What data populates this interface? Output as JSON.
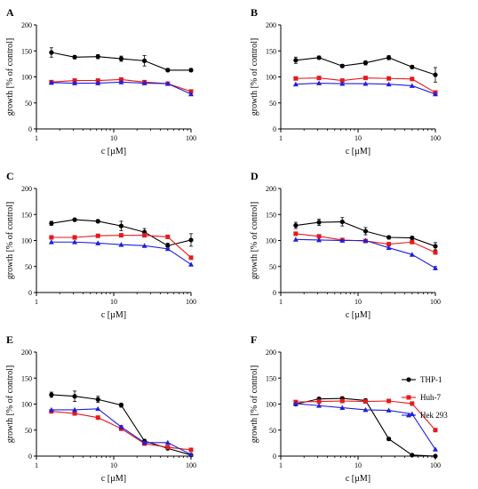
{
  "colors": {
    "THP-1": "#000000",
    "Huh-7": "#e41a1c",
    "Hek 293": "#1f1fdc"
  },
  "legend": [
    {
      "name": "THP-1",
      "marker": "circle"
    },
    {
      "name": "Huh-7",
      "marker": "square"
    },
    {
      "name": "Hek 293",
      "marker": "triangle"
    }
  ],
  "chart_data": [
    {
      "type": "line",
      "panel": "A",
      "xlabel": "c [µM]",
      "ylabel": "growth [% of control]",
      "xscale": "log",
      "xlim": [
        1,
        100
      ],
      "ylim": [
        0,
        200
      ],
      "xticks": [
        1,
        10,
        100
      ],
      "yticks": [
        0,
        50,
        100,
        150,
        200
      ],
      "x": [
        1.5625,
        3.125,
        6.25,
        12.5,
        25,
        50,
        100
      ],
      "series": [
        {
          "name": "THP-1",
          "values": [
            147,
            138,
            139,
            135,
            131,
            113,
            113
          ],
          "errors": [
            9,
            3,
            4,
            5,
            10,
            3,
            3
          ]
        },
        {
          "name": "Huh-7",
          "values": [
            90,
            93,
            93,
            95,
            90,
            87,
            72
          ],
          "errors": [
            3,
            3,
            2,
            3,
            3,
            2,
            3
          ]
        },
        {
          "name": "Hek 293",
          "values": [
            89,
            88,
            88,
            90,
            88,
            87,
            67
          ],
          "errors": [
            2,
            2,
            2,
            2,
            2,
            2,
            2
          ]
        }
      ]
    },
    {
      "type": "line",
      "panel": "B",
      "xlabel": "c [µM]",
      "ylabel": "growth [% of control]",
      "xscale": "log",
      "xlim": [
        1,
        100
      ],
      "ylim": [
        0,
        200
      ],
      "xticks": [
        1,
        10,
        100
      ],
      "yticks": [
        0,
        50,
        100,
        150,
        200
      ],
      "x": [
        1.5625,
        3.125,
        6.25,
        12.5,
        25,
        50,
        100
      ],
      "series": [
        {
          "name": "THP-1",
          "values": [
            132,
            137,
            121,
            127,
            137,
            119,
            104
          ],
          "errors": [
            6,
            3,
            3,
            4,
            4,
            3,
            14
          ]
        },
        {
          "name": "Huh-7",
          "values": [
            97,
            98,
            93,
            98,
            97,
            96,
            70
          ],
          "errors": [
            2,
            2,
            2,
            2,
            2,
            2,
            3
          ]
        },
        {
          "name": "Hek 293",
          "values": [
            86,
            88,
            87,
            87,
            86,
            83,
            67
          ],
          "errors": [
            2,
            2,
            2,
            2,
            2,
            2,
            2
          ]
        }
      ]
    },
    {
      "type": "line",
      "panel": "C",
      "xlabel": "c [µM]",
      "ylabel": "growth [% of control]",
      "xscale": "log",
      "xlim": [
        1,
        100
      ],
      "ylim": [
        0,
        200
      ],
      "xticks": [
        1,
        10,
        100
      ],
      "yticks": [
        0,
        50,
        100,
        150,
        200
      ],
      "x": [
        1.5625,
        3.125,
        6.25,
        12.5,
        25,
        50,
        100
      ],
      "series": [
        {
          "name": "THP-1",
          "values": [
            133,
            140,
            137,
            128,
            116,
            90,
            101
          ],
          "errors": [
            4,
            3,
            3,
            9,
            7,
            5,
            12
          ]
        },
        {
          "name": "Huh-7",
          "values": [
            106,
            106,
            109,
            110,
            110,
            107,
            67
          ],
          "errors": [
            2,
            2,
            2,
            2,
            3,
            2,
            3
          ]
        },
        {
          "name": "Hek 293",
          "values": [
            97,
            97,
            95,
            92,
            90,
            84,
            54
          ],
          "errors": [
            2,
            2,
            2,
            2,
            2,
            2,
            2
          ]
        }
      ]
    },
    {
      "type": "line",
      "panel": "D",
      "xlabel": "c [µM]",
      "ylabel": "growth [% of control]",
      "xscale": "log",
      "xlim": [
        1,
        100
      ],
      "ylim": [
        0,
        200
      ],
      "xticks": [
        1,
        10,
        100
      ],
      "yticks": [
        0,
        50,
        100,
        150,
        200
      ],
      "x": [
        1.5625,
        3.125,
        6.25,
        12.5,
        25,
        50,
        100
      ],
      "series": [
        {
          "name": "THP-1",
          "values": [
            129,
            135,
            136,
            118,
            106,
            105,
            89
          ],
          "errors": [
            6,
            6,
            8,
            7,
            3,
            3,
            7
          ]
        },
        {
          "name": "Huh-7",
          "values": [
            113,
            108,
            101,
            99,
            93,
            97,
            77
          ],
          "errors": [
            3,
            2,
            2,
            2,
            2,
            3,
            3
          ]
        },
        {
          "name": "Hek 293",
          "values": [
            102,
            101,
            100,
            100,
            86,
            73,
            47
          ],
          "errors": [
            2,
            2,
            2,
            2,
            2,
            2,
            3
          ]
        }
      ]
    },
    {
      "type": "line",
      "panel": "E",
      "xlabel": "c [µM]",
      "ylabel": "growth [% of control]",
      "xscale": "log",
      "xlim": [
        1,
        100
      ],
      "ylim": [
        0,
        200
      ],
      "xticks": [
        1,
        10,
        100
      ],
      "yticks": [
        0,
        50,
        100,
        150,
        200
      ],
      "x": [
        1.5625,
        3.125,
        6.25,
        12.5,
        25,
        50,
        100
      ],
      "series": [
        {
          "name": "THP-1",
          "values": [
            118,
            115,
            109,
            98,
            29,
            15,
            2
          ],
          "errors": [
            5,
            10,
            6,
            4,
            3,
            2,
            1
          ]
        },
        {
          "name": "Huh-7",
          "values": [
            86,
            82,
            74,
            53,
            24,
            17,
            12
          ],
          "errors": [
            3,
            3,
            3,
            4,
            2,
            2,
            2
          ]
        },
        {
          "name": "Hek 293",
          "values": [
            89,
            89,
            91,
            56,
            26,
            26,
            3
          ],
          "errors": [
            2,
            2,
            2,
            3,
            2,
            2,
            1
          ]
        }
      ]
    },
    {
      "type": "line",
      "panel": "F",
      "xlabel": "c [µM]",
      "ylabel": "growth [% of control]",
      "xscale": "log",
      "xlim": [
        1,
        100
      ],
      "ylim": [
        0,
        200
      ],
      "xticks": [
        1,
        10,
        100
      ],
      "yticks": [
        0,
        50,
        100,
        150,
        200
      ],
      "x": [
        1.5625,
        3.125,
        6.25,
        12.5,
        25,
        50,
        100
      ],
      "series": [
        {
          "name": "THP-1",
          "values": [
            100,
            110,
            111,
            107,
            33,
            2,
            0
          ],
          "errors": [
            3,
            3,
            3,
            3,
            3,
            1,
            1
          ]
        },
        {
          "name": "Huh-7",
          "values": [
            104,
            105,
            106,
            105,
            106,
            101,
            50
          ],
          "errors": [
            2,
            2,
            2,
            2,
            2,
            2,
            3
          ]
        },
        {
          "name": "Hek 293",
          "values": [
            101,
            97,
            93,
            89,
            88,
            81,
            13
          ],
          "errors": [
            2,
            2,
            2,
            2,
            2,
            2,
            2
          ]
        }
      ]
    }
  ]
}
